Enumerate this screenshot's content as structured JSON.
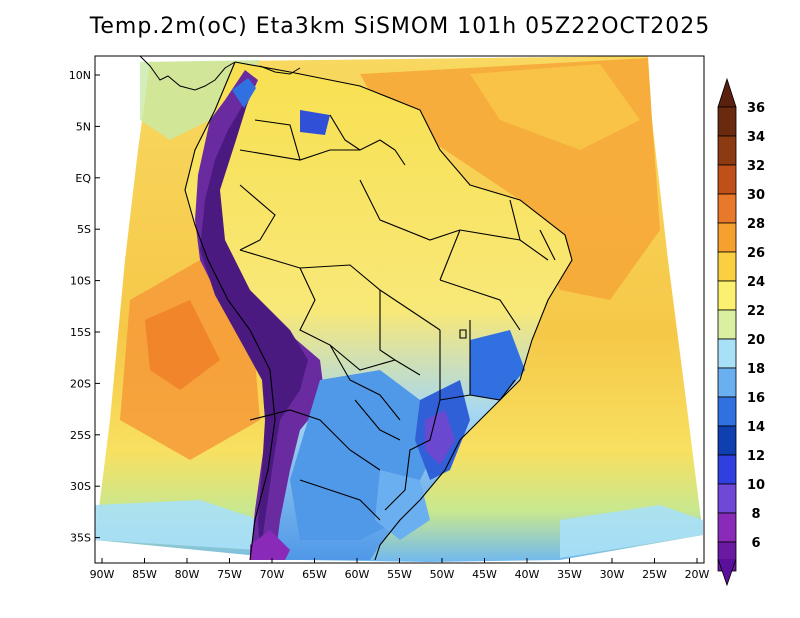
{
  "title": "Temp.2m(oC) Eta3km SiSMOM 101h 05Z22OCT2025",
  "lat_labels": [
    "10N",
    "5N",
    "EQ",
    "5S",
    "10S",
    "15S",
    "20S",
    "25S",
    "30S",
    "35S"
  ],
  "lon_labels": [
    "90W",
    "85W",
    "80W",
    "75W",
    "70W",
    "65W",
    "60W",
    "55W",
    "50W",
    "45W",
    "40W",
    "35W",
    "30W",
    "25W",
    "20W"
  ],
  "colorbar": {
    "labels": [
      "36",
      "34",
      "32",
      "30",
      "28",
      "26",
      "24",
      "22",
      "20",
      "18",
      "16",
      "14",
      "12",
      "10",
      "8",
      "6"
    ],
    "colors": [
      "#6a2a10",
      "#8b3a12",
      "#c0501a",
      "#e8782a",
      "#f6a030",
      "#fbd040",
      "#fbf070",
      "#d8f0a0",
      "#a8e0f8",
      "#6ab0f0",
      "#3070e0",
      "#1040b0",
      "#3040e0",
      "#7048d8",
      "#8a2ab8",
      "#6a1aa0"
    ],
    "top_arrow_color": "#5a2010",
    "bottom_arrow_color": "#5a109a"
  }
}
